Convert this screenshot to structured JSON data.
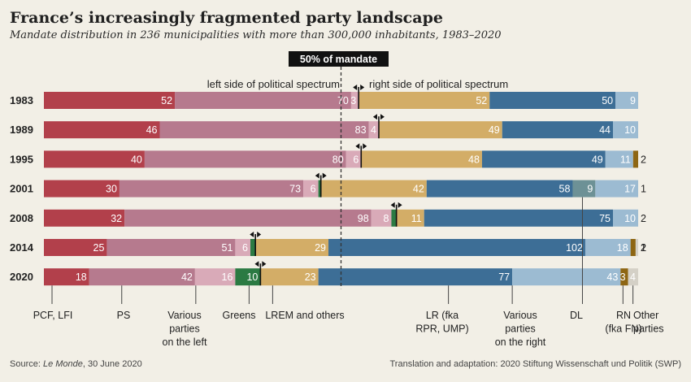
{
  "title": "France’s increasingly fragmented party landscape",
  "subtitle": "Mandate distribution in 236 municipalities with more than 300,000 inhabitants, 1983–2020",
  "majority_label": "50% of mandate",
  "left_label": "left side of political spectrum",
  "right_label": "right side of political spectrum",
  "footer": {
    "source_prefix": "Source: ",
    "source_title": "Le Monde",
    "source_suffix": ", 30 June 2020",
    "credit": "Translation and adaptation: 2020 Stiftung Wissenschaft und Politik (SWP)"
  },
  "colors": {
    "PCF_LFI": "#b2404b",
    "PS": "#b67a8e",
    "various_left": "#d9aab8",
    "Greens": "#2b7a43",
    "LREM": "#d3ad67",
    "LR": "#3d6e96",
    "various_right": "#9cbbd2",
    "DL": "#6d9196",
    "RN": "#8e6613",
    "other": "#d4d0c6"
  },
  "chart_data": {
    "type": "bar",
    "orientation": "horizontal",
    "stacked": true,
    "total_mandates": 236,
    "majority_line": 118,
    "legend_placement": "bottom",
    "categories": [
      "1983",
      "1989",
      "1995",
      "2001",
      "2008",
      "2014",
      "2020"
    ],
    "series": [
      {
        "key": "PCF_LFI",
        "name": "PCF, LFI",
        "values": [
          52,
          46,
          40,
          30,
          32,
          25,
          18
        ]
      },
      {
        "key": "PS",
        "name": "PS",
        "values": [
          70,
          83,
          80,
          73,
          98,
          51,
          42
        ]
      },
      {
        "key": "various_left",
        "name": "Various parties on the left",
        "values": [
          3,
          4,
          6,
          6,
          8,
          6,
          16
        ]
      },
      {
        "key": "Greens",
        "name": "Greens",
        "values": [
          0,
          0,
          0,
          1,
          2,
          2,
          10
        ]
      },
      {
        "key": "LREM",
        "name": "LREM and others",
        "values": [
          52,
          49,
          48,
          42,
          11,
          29,
          23
        ]
      },
      {
        "key": "LR",
        "name": "LR (fka RPR, UMP)",
        "values": [
          50,
          44,
          49,
          58,
          75,
          102,
          77
        ]
      },
      {
        "key": "DL",
        "name": "DL",
        "values": [
          0,
          0,
          0,
          9,
          0,
          0,
          0
        ]
      },
      {
        "key": "various_right",
        "name": "Various parties on the right",
        "values": [
          9,
          10,
          11,
          17,
          10,
          18,
          43
        ]
      },
      {
        "key": "RN",
        "name": "RN (fka FN)",
        "values": [
          0,
          0,
          2,
          0,
          0,
          2,
          3
        ]
      },
      {
        "key": "other",
        "name": "Other parties",
        "values": [
          0,
          0,
          0,
          0,
          0,
          1,
          4
        ]
      }
    ],
    "value_labels": {
      "PCF_LFI": [
        "52",
        "46",
        "40",
        "30",
        "32",
        "25",
        "18"
      ],
      "PS": [
        "70",
        "83",
        "80",
        "73",
        "98",
        "51",
        "42"
      ],
      "various_left": [
        "3",
        "4",
        "6",
        "6",
        "8",
        "6",
        "16"
      ],
      "Greens": [
        "",
        "",
        "",
        "1",
        "2",
        "2",
        "10"
      ],
      "LREM": [
        "52",
        "49",
        "48",
        "42",
        "11",
        "29",
        "23"
      ],
      "LR": [
        "50",
        "44",
        "49",
        "58",
        "75",
        "102",
        "77"
      ],
      "DL": [
        "",
        "",
        "",
        "9",
        "",
        "",
        ""
      ],
      "various_right": [
        "9",
        "10",
        "11",
        "17",
        "10",
        "18",
        "43"
      ],
      "RN": [
        "",
        "",
        "2",
        "",
        "",
        "2",
        "3"
      ],
      "other": [
        "",
        "",
        "",
        "",
        "",
        "1",
        "4"
      ]
    },
    "legend_labels": {
      "PCF_LFI": [
        "PCF, LFI"
      ],
      "PS": [
        "PS"
      ],
      "various_left": [
        "Various",
        "parties",
        "on the left"
      ],
      "Greens": [
        "Greens"
      ],
      "LREM": [
        "LREM and others"
      ],
      "LR": [
        "LR (fka",
        "RPR, UMP)"
      ],
      "various_right": [
        "Various",
        "parties",
        "on the right"
      ],
      "DL": [
        "DL"
      ],
      "RN": [
        "RN",
        "(fka FN)"
      ],
      "other": [
        "Other",
        "parties"
      ]
    }
  }
}
